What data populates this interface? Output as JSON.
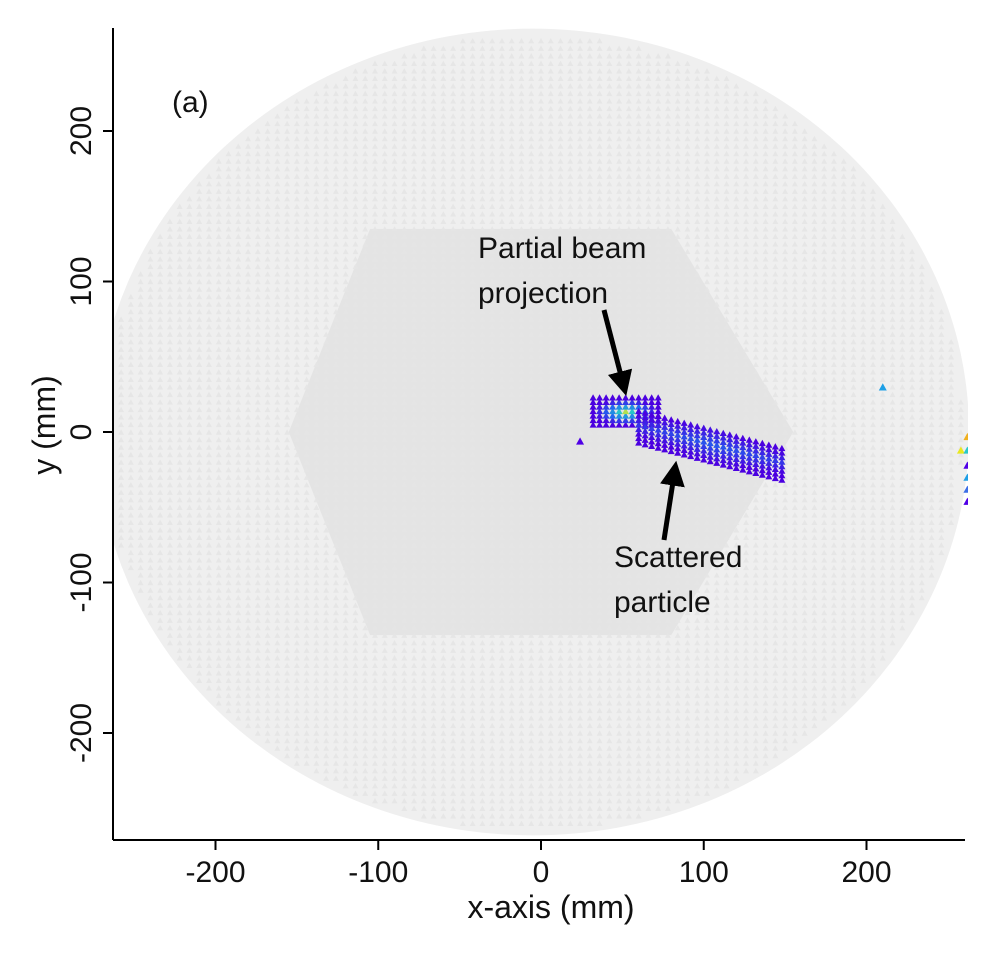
{
  "chart_data": {
    "type": "scatter",
    "panel_label": "(a)",
    "xlabel": "x-axis (mm)",
    "ylabel": "y (mm)",
    "xlim": [
      -270,
      270
    ],
    "ylim": [
      -270,
      270
    ],
    "x_ticks": [
      -200,
      -100,
      0,
      100,
      200
    ],
    "y_ticks": [
      -200,
      -100,
      0,
      100,
      200
    ],
    "x_tick_labels": [
      "-200",
      "-100",
      "0",
      "100",
      "200"
    ],
    "y_tick_labels": [
      "-200",
      "-100",
      "0",
      "100",
      "200"
    ],
    "grid": false,
    "background_layers": [
      {
        "name": "detector-disk",
        "shape": "circle",
        "center": [
          -5,
          0
        ],
        "radius": 268,
        "color": "#efefef"
      },
      {
        "name": "inner-hexagon",
        "shape": "polygon",
        "points": [
          [
            -155,
            0
          ],
          [
            -105,
            135
          ],
          [
            80,
            135
          ],
          [
            155,
            0
          ],
          [
            80,
            -135
          ],
          [
            -105,
            -135
          ]
        ],
        "color": "#e4e4e4"
      }
    ],
    "series": [
      {
        "name": "partial-beam-projection",
        "marker": "triangle",
        "color": "#4b00e0",
        "region": {
          "x": [
            32,
            72
          ],
          "y": [
            5,
            25
          ]
        }
      },
      {
        "name": "scattered-particle",
        "marker": "triangle",
        "color": "#4b00e0",
        "region": {
          "x": [
            60,
            150
          ],
          "y": [
            -35,
            10
          ]
        }
      },
      {
        "name": "isolated-hits",
        "marker": "triangle",
        "points": [
          {
            "x": 210,
            "y": 30,
            "color": "#1e9fe6"
          },
          {
            "x": 265,
            "y": 5,
            "color": "#f06a1e"
          },
          {
            "x": 262,
            "y": -3,
            "color": "#f0b020"
          },
          {
            "x": 258,
            "y": -12,
            "color": "#e8e820"
          },
          {
            "x": 262,
            "y": -12,
            "color": "#28c8c8"
          },
          {
            "x": 266,
            "y": -12,
            "color": "#1e9fe6"
          },
          {
            "x": 262,
            "y": -22,
            "color": "#5000e6"
          },
          {
            "x": 262,
            "y": -30,
            "color": "#1e9fe6"
          },
          {
            "x": 262,
            "y": -38,
            "color": "#3c6ee6"
          },
          {
            "x": 262,
            "y": -46,
            "color": "#5000e6"
          },
          {
            "x": 24,
            "y": -6,
            "color": "#5000e6"
          }
        ]
      }
    ],
    "annotations": [
      {
        "lines": [
          "Partial beam",
          "projection"
        ],
        "target": [
          48,
          28
        ]
      },
      {
        "lines": [
          "Scattered",
          "particle"
        ],
        "target": [
          85,
          -18
        ]
      }
    ]
  }
}
